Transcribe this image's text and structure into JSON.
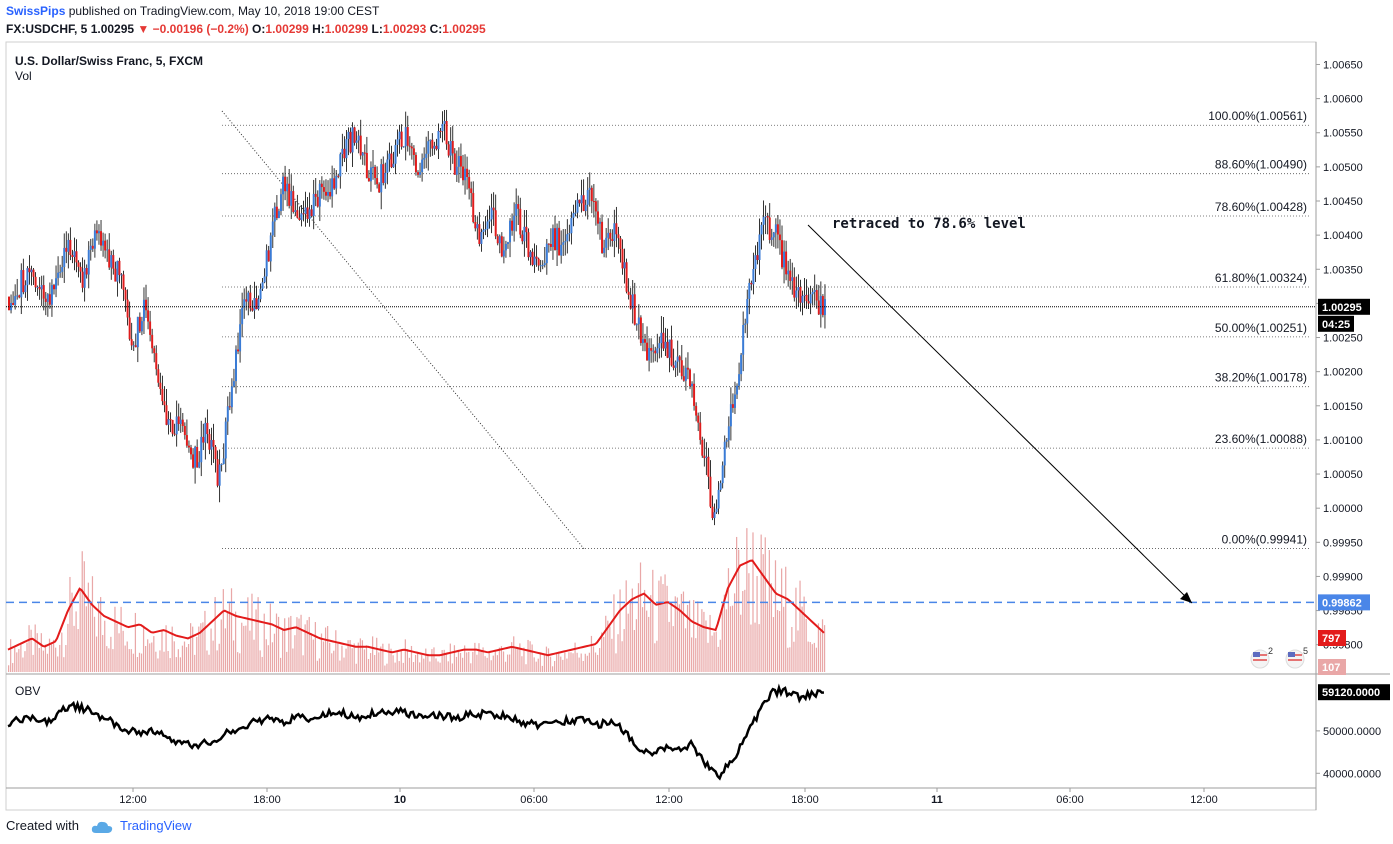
{
  "header": {
    "author": "SwissPips",
    "published": "published on TradingView.com, May 10, 2018 19:00 CEST",
    "symbol": "FX:USDCHF, 5",
    "last": "1.00295",
    "change": "▼ −0.00196 (−0.2%)",
    "o_label": "O:",
    "o_value": "1.00299",
    "h_label": "H:",
    "h_value": "1.00299",
    "l_label": "L:",
    "l_value": "1.00293",
    "c_label": "C:",
    "c_value": "1.00295"
  },
  "legend": {
    "title": "U.S. Dollar/Swiss Franc, 5, FXCM",
    "sub": "Vol"
  },
  "annotation": "retraced to 78.6% level",
  "obv_label": "OBV",
  "footer": {
    "created": "Created with",
    "brand": "TradingView"
  },
  "colors": {
    "up": "#3a7bd5",
    "down": "#e01c1c",
    "volume": "#e9a7a7",
    "ma": "#e31b1b",
    "obv": "#000000",
    "hline": "#4a86e8"
  },
  "chart_data": {
    "type": "candlestick",
    "price_axis": [
      "1.00650",
      "1.00600",
      "1.00550",
      "1.00500",
      "1.00450",
      "1.00400",
      "1.00350",
      "1.00300",
      "1.00250",
      "1.00200",
      "1.00150",
      "1.00100",
      "1.00050",
      "1.00000",
      "0.99950",
      "0.99900",
      "0.99850",
      "0.99800"
    ],
    "ylim": [
      0.9976,
      1.0068
    ],
    "time_ticks": [
      "12:00",
      "18:00",
      "10",
      "06:00",
      "12:00",
      "18:00",
      "11",
      "06:00",
      "12:00"
    ],
    "price_path": [
      1.0031,
      1.0033,
      1.0034,
      1.0029,
      1.0035,
      1.0038,
      1.0033,
      1.0041,
      1.0037,
      1.0034,
      1.0024,
      1.003,
      1.002,
      1.0012,
      1.0013,
      1.0007,
      1.0011,
      1.0004,
      1.0018,
      1.003,
      1.0031,
      1.0038,
      1.0047,
      1.0045,
      1.0043,
      1.0046,
      1.0047,
      1.0052,
      1.0055,
      1.005,
      1.0048,
      1.0052,
      1.0055,
      1.005,
      1.0052,
      1.0056,
      1.0051,
      1.0048,
      1.004,
      1.0043,
      1.0038,
      1.0043,
      1.0038,
      1.0036,
      1.004,
      1.0038,
      1.0046,
      1.0045,
      1.0039,
      1.004,
      1.0033,
      1.0026,
      1.0022,
      1.0025,
      1.0021,
      1.002,
      1.001,
      0.9999,
      1.001,
      1.002,
      1.0033,
      1.0041,
      1.004,
      1.0034,
      1.003,
      1.0031,
      1.00295
    ],
    "fib_levels": [
      {
        "label": "100.00%(1.00561)",
        "price": 1.00561
      },
      {
        "label": "88.60%(1.00490)",
        "price": 1.0049
      },
      {
        "label": "78.60%(1.00428)",
        "price": 1.00428
      },
      {
        "label": "61.80%(1.00324)",
        "price": 1.00324
      },
      {
        "label": "50.00%(1.00251)",
        "price": 1.00251
      },
      {
        "label": "38.20%(1.00178)",
        "price": 1.00178
      },
      {
        "label": "23.60%(1.00088)",
        "price": 1.00088
      },
      {
        "label": "0.00%(0.99941)",
        "price": 0.99941
      }
    ],
    "current_price": {
      "label": "1.00295",
      "price": 1.00295,
      "countdown": "04:25"
    },
    "horizontal_line": {
      "label": "0.99862",
      "price": 0.99862
    },
    "volume_labels": {
      "ma": "797",
      "last": "107"
    },
    "obv": {
      "axis": [
        "50000.0000",
        "40000.0000"
      ],
      "ylim": [
        37000,
        62000
      ],
      "current": "59120.0000",
      "values": [
        52000,
        52500,
        53000,
        52000,
        54500,
        56000,
        55000,
        53500,
        52000,
        50000,
        49500,
        50000,
        48500,
        47500,
        46500,
        47000,
        48500,
        50000,
        51000,
        52500,
        53000,
        52000,
        53500,
        53000,
        54000,
        54500,
        53500,
        53000,
        54500,
        54000,
        54500,
        53500,
        54000,
        53500,
        53000,
        54000,
        54000,
        53500,
        53500,
        52000,
        51500,
        51500,
        52500,
        52000,
        53000,
        51500,
        52500,
        49500,
        46000,
        45000,
        46000,
        45500,
        47000,
        42000,
        39000,
        43000,
        48000,
        54000,
        59000,
        59500,
        58000,
        58500,
        59120
      ]
    },
    "volume": [
      8,
      10,
      12,
      9,
      11,
      22,
      30,
      24,
      20,
      18,
      16,
      17,
      14,
      15,
      13,
      12,
      14,
      18,
      22,
      20,
      19,
      18,
      17,
      15,
      16,
      14,
      12,
      11,
      10,
      9,
      9,
      8,
      7,
      8,
      7,
      6,
      6,
      7,
      8,
      8,
      7,
      8,
      9,
      8,
      7,
      6,
      7,
      8,
      9,
      10,
      16,
      22,
      26,
      28,
      24,
      25,
      22,
      18,
      16,
      15,
      30,
      38,
      40,
      34,
      28,
      26,
      22,
      18,
      14
    ]
  }
}
